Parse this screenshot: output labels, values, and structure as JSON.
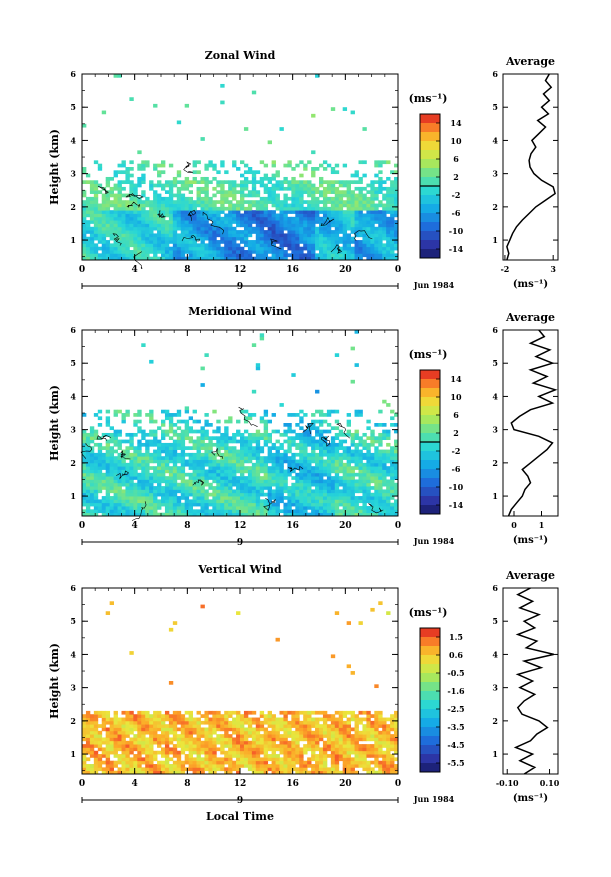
{
  "chart_data": [
    {
      "type": "heatmap",
      "title": "Zonal Wind",
      "xlabel": "",
      "ylabel": "Height (km)",
      "x_ticks": [
        "0",
        "4",
        "8",
        "12",
        "16",
        "20",
        "0"
      ],
      "y_ticks": [
        "1",
        "2",
        "3",
        "4",
        "5",
        "6"
      ],
      "xlim": [
        0,
        24
      ],
      "ylim": [
        0.4,
        6
      ],
      "day_marker": "9",
      "date_label": "Jun 1984",
      "data_ceiling_km": 3.4,
      "colorbar": {
        "unit": "(ms⁻¹)",
        "labels": [
          "14",
          "10",
          "6",
          "2",
          "-2",
          "-6",
          "-10",
          "-14"
        ],
        "range": [
          -16,
          16
        ],
        "zero_line": true
      },
      "profile": {
        "title": "Average",
        "unit": "(ms⁻¹)",
        "x_ticks": [
          "-2",
          "3"
        ],
        "xlim": [
          -2.2,
          3.5
        ],
        "heights": [
          0.4,
          0.6,
          0.8,
          1.0,
          1.2,
          1.4,
          1.6,
          1.8,
          2.0,
          2.2,
          2.4,
          2.6,
          2.8,
          3.0,
          3.2,
          3.4,
          3.6,
          3.8,
          4.0,
          4.2,
          4.4,
          4.6,
          4.8,
          5.0,
          5.2,
          5.4,
          5.6,
          5.8,
          6.0
        ],
        "values": [
          -1.8,
          -1.6,
          -1.8,
          -1.5,
          -1.2,
          -0.8,
          -0.2,
          0.5,
          1.2,
          2.2,
          3.2,
          3.0,
          1.8,
          1.0,
          0.6,
          0.5,
          0.7,
          1.2,
          0.8,
          1.5,
          2.2,
          1.4,
          2.5,
          1.8,
          2.6,
          2.0,
          2.8,
          2.2,
          2.6
        ]
      }
    },
    {
      "type": "heatmap",
      "title": "Meridional Wind",
      "xlabel": "",
      "ylabel": "Height (km)",
      "x_ticks": [
        "0",
        "4",
        "8",
        "12",
        "16",
        "20",
        "0"
      ],
      "y_ticks": [
        "1",
        "2",
        "3",
        "4",
        "5",
        "6"
      ],
      "xlim": [
        0,
        24
      ],
      "ylim": [
        0.4,
        6
      ],
      "day_marker": "9",
      "date_label": "Jun 1984",
      "data_ceiling_km": 3.6,
      "colorbar": {
        "unit": "(ms⁻¹)",
        "labels": [
          "14",
          "10",
          "6",
          "2",
          "-2",
          "-6",
          "-10",
          "-14"
        ],
        "range": [
          -16,
          16
        ],
        "zero_line": true
      },
      "profile": {
        "title": "Average",
        "unit": "(ms⁻¹)",
        "x_ticks": [
          "0",
          "1"
        ],
        "xlim": [
          -0.4,
          1.6
        ],
        "heights": [
          0.4,
          0.6,
          0.8,
          1.0,
          1.2,
          1.4,
          1.6,
          1.8,
          2.0,
          2.2,
          2.4,
          2.6,
          2.8,
          3.0,
          3.2,
          3.4,
          3.6,
          3.8,
          4.0,
          4.2,
          4.4,
          4.6,
          4.8,
          5.0,
          5.2,
          5.4,
          5.6,
          5.8,
          6.0
        ],
        "values": [
          -0.2,
          -0.1,
          0.1,
          0.3,
          0.4,
          0.6,
          0.5,
          0.3,
          0.6,
          0.9,
          1.2,
          1.4,
          0.9,
          0.0,
          -0.1,
          0.2,
          0.6,
          1.4,
          0.9,
          1.5,
          0.7,
          1.2,
          0.6,
          1.4,
          0.8,
          1.3,
          0.6,
          1.1,
          0.9
        ]
      }
    },
    {
      "type": "heatmap",
      "title": "Vertical Wind",
      "xlabel": "Local Time",
      "ylabel": "Height (km)",
      "x_ticks": [
        "0",
        "4",
        "8",
        "12",
        "16",
        "20",
        "0"
      ],
      "y_ticks": [
        "1",
        "2",
        "3",
        "4",
        "5",
        "6"
      ],
      "xlim": [
        0,
        24
      ],
      "ylim": [
        0.4,
        6
      ],
      "day_marker": "9",
      "date_label": "Jun 1984",
      "data_ceiling_km": 2.3,
      "colorbar": {
        "unit": "(ms⁻¹)",
        "labels": [
          "1.5",
          "0.6",
          "-0.5",
          "-1.6",
          "-2.5",
          "-3.5",
          "-4.5",
          "-5.5"
        ],
        "range": [
          -6,
          2
        ],
        "zero_line": false
      },
      "profile": {
        "title": "Average",
        "unit": "(ms⁻¹)",
        "x_ticks": [
          "-0.10",
          "0.10"
        ],
        "xlim": [
          -0.12,
          0.14
        ],
        "heights": [
          0.4,
          0.6,
          0.8,
          1.0,
          1.2,
          1.4,
          1.6,
          1.8,
          2.0,
          2.2,
          2.4,
          2.6,
          2.8,
          3.0,
          3.2,
          3.4,
          3.6,
          3.8,
          4.0,
          4.2,
          4.4,
          4.6,
          4.8,
          5.0,
          5.2,
          5.4,
          5.6,
          5.8,
          6.0
        ],
        "values": [
          -0.02,
          0.03,
          -0.04,
          0.02,
          -0.06,
          0.01,
          0.04,
          0.09,
          0.05,
          -0.03,
          -0.05,
          -0.02,
          0.03,
          -0.04,
          0.02,
          -0.05,
          0.06,
          -0.02,
          0.12,
          -0.01,
          0.04,
          -0.05,
          0.03,
          -0.02,
          0.05,
          -0.04,
          0.02,
          -0.05,
          0.01
        ]
      }
    }
  ]
}
